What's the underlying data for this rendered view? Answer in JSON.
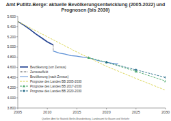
{
  "chart_data": {
    "type": "line",
    "title": "Amt Putlitz-Berge: aktuelle Bevölkerungsentwicklung (2005-2022) und Prognosen (bis 2030)",
    "source": "Quellen: Amt für Statistik Berlin-Brandenburg, Landesamt für Bauen und Verkehr",
    "xlim": [
      2005,
      2030
    ],
    "xticks": [
      2005,
      2010,
      2015,
      2020,
      2025,
      2030
    ],
    "ylim": [
      3800,
      5600
    ],
    "yticks": [
      {
        "value": 3800,
        "label": "3.800"
      },
      {
        "value": 4000,
        "label": "4.000"
      },
      {
        "value": 4200,
        "label": "4.200"
      },
      {
        "value": 4400,
        "label": "4.400"
      },
      {
        "value": 4600,
        "label": "4.600"
      },
      {
        "value": 4800,
        "label": "4.800"
      },
      {
        "value": 5000,
        "label": "5.000"
      },
      {
        "value": 5200,
        "label": "5.200"
      },
      {
        "value": 5400,
        "label": "5.400"
      },
      {
        "value": 5600,
        "label": "5.600"
      }
    ],
    "grid": false,
    "legend": "lower left",
    "series": [
      {
        "name": "Bevölkerung (vor Zensus)",
        "color": "#1f3f8f",
        "line_style": "solid",
        "marker": "none",
        "x": [
          2005,
          2006,
          2007,
          2008,
          2009,
          2010,
          2011
        ],
        "values": [
          5500,
          5430,
          5350,
          5260,
          5180,
          5100,
          5040
        ]
      },
      {
        "name": "Zensuseffekt",
        "color": "#333333",
        "line_style": "dotted",
        "marker": "none",
        "x": [
          2011,
          2011
        ],
        "values": [
          5040,
          4920
        ]
      },
      {
        "name": "Bevölkerung (nach Zensus)",
        "color": "#5b8fd6",
        "line_style": "solid",
        "marker": "none",
        "x": [
          2011,
          2012,
          2013,
          2014,
          2015,
          2016,
          2017,
          2018,
          2019,
          2020,
          2021,
          2022
        ],
        "values": [
          4920,
          4880,
          4860,
          4830,
          4820,
          4800,
          4790,
          4750,
          4720,
          4700,
          4680,
          4670
        ]
      },
      {
        "name": "Prognose des Landes BB 2005-2030",
        "color": "#d8d24a",
        "line_style": "dashed",
        "marker": "none",
        "x": [
          2005,
          2010,
          2015,
          2020,
          2025,
          2030
        ],
        "values": [
          5500,
          5200,
          4900,
          4620,
          4380,
          4150
        ]
      },
      {
        "name": "Prognose des Landes BB 2017-2030",
        "color": "#4aa86a",
        "line_style": "dashed",
        "marker": "triangle",
        "x": [
          2017,
          2020,
          2025,
          2030
        ],
        "values": [
          4790,
          4700,
          4520,
          4330
        ]
      },
      {
        "name": "Prognose des Landes BB 2020-2030",
        "color": "#2a6f8a",
        "line_style": "dashed",
        "marker": "diamond",
        "x": [
          2020,
          2025,
          2030
        ],
        "values": [
          4700,
          4550,
          4400
        ]
      }
    ]
  }
}
